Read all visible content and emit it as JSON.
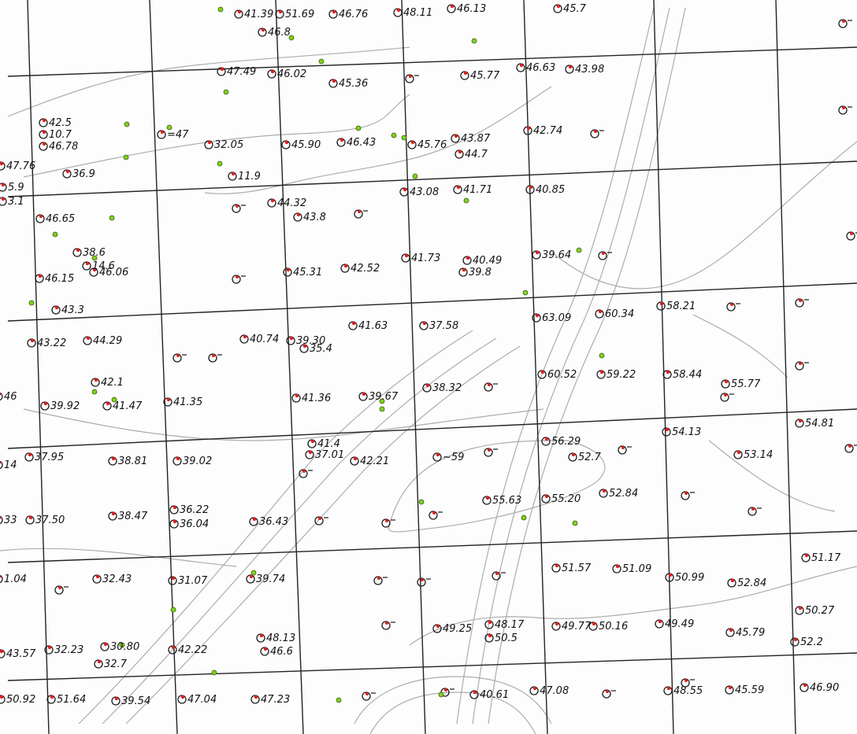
{
  "colors": {
    "ink": "#1a1a1a",
    "contour": "#8a8a8a",
    "red_dot": "#e0201c",
    "green_dot": "#7fd11e",
    "grid": "#222222"
  },
  "points": [
    {
      "label": "42.5"
    },
    {
      "label": "10.7"
    },
    {
      "label": "46.78"
    },
    {
      "label": "47.76"
    },
    {
      "label": "36.9"
    },
    {
      "label": "5.9"
    },
    {
      "label": "=47"
    },
    {
      "label": "47.49"
    },
    {
      "label": "46.02"
    },
    {
      "label": "45.36"
    },
    {
      "label": "45.77"
    },
    {
      "label": "46.63"
    },
    {
      "label": "43.98"
    },
    {
      "label": "32.05"
    },
    {
      "label": "45.90"
    },
    {
      "label": "46.43"
    },
    {
      "label": "45.76"
    },
    {
      "label": "43.87"
    },
    {
      "label": "44.7"
    },
    {
      "label": "42.74"
    },
    {
      "label": "46.65"
    },
    {
      "label": "38.6"
    },
    {
      "label": "14.6"
    },
    {
      "label": "46.15"
    },
    {
      "label": "46.06"
    },
    {
      "label": "44.32"
    },
    {
      "label": "43.8"
    },
    {
      "label": "43.08"
    },
    {
      "label": "41.71"
    },
    {
      "label": "40.85"
    },
    {
      "label": "45.31"
    },
    {
      "label": "42.52"
    },
    {
      "label": "41.73"
    },
    {
      "label": "40.49"
    },
    {
      "label": "39.64"
    },
    {
      "label": "39.8"
    },
    {
      "label": "43.3"
    },
    {
      "label": "43.22"
    },
    {
      "label": "44.29"
    },
    {
      "label": "40.74"
    },
    {
      "label": "39.30"
    },
    {
      "label": "35.4"
    },
    {
      "label": "41.63"
    },
    {
      "label": "37.58"
    },
    {
      "label": "63.09"
    },
    {
      "label": "60.34"
    },
    {
      "label": "58.21"
    },
    {
      "label": "42.1"
    },
    {
      "label": "39.92"
    },
    {
      "label": "41.47"
    },
    {
      "label": "41.35"
    },
    {
      "label": "41.36"
    },
    {
      "label": "39.67"
    },
    {
      "label": "38.32"
    },
    {
      "label": "60.52"
    },
    {
      "label": "59.22"
    },
    {
      "label": "58.44"
    },
    {
      "label": "55.77"
    },
    {
      "label": "37.95"
    },
    {
      "label": "38.81"
    },
    {
      "label": "39.02"
    },
    {
      "label": "41.4"
    },
    {
      "label": "37.01"
    },
    {
      "label": "42.21"
    },
    {
      "label": "~59"
    },
    {
      "label": "56.29"
    },
    {
      "label": "52.7"
    },
    {
      "label": "54.13"
    },
    {
      "label": "53.14"
    },
    {
      "label": "54.81"
    },
    {
      "label": "37.50"
    },
    {
      "label": "38.47"
    },
    {
      "label": "36.22"
    },
    {
      "label": "36.04"
    },
    {
      "label": "36.43"
    },
    {
      "label": "55.63"
    },
    {
      "label": "55.20"
    },
    {
      "label": "52.84"
    },
    {
      "label": "32.43"
    },
    {
      "label": "31.07"
    },
    {
      "label": "39.74"
    },
    {
      "label": "51.57"
    },
    {
      "label": "51.09"
    },
    {
      "label": "50.99"
    },
    {
      "label": "52.84"
    },
    {
      "label": "51.17"
    },
    {
      "label": "32.23"
    },
    {
      "label": "30.80"
    },
    {
      "label": "32.7"
    },
    {
      "label": "42.22"
    },
    {
      "label": "48.13"
    },
    {
      "label": "46.6"
    },
    {
      "label": "49.25"
    },
    {
      "label": "48.17"
    },
    {
      "label": "50.5"
    },
    {
      "label": "49.77"
    },
    {
      "label": "50.16"
    },
    {
      "label": "49.49"
    },
    {
      "label": "45.79"
    },
    {
      "label": "50.27"
    },
    {
      "label": "52.2"
    },
    {
      "label": "51.64"
    },
    {
      "label": "39.54"
    },
    {
      "label": "47.04"
    },
    {
      "label": "47.23"
    },
    {
      "label": "40.61"
    },
    {
      "label": "47.08"
    },
    {
      "label": "48.55"
    },
    {
      "label": "45.59"
    },
    {
      "label": "46.90"
    },
    {
      "label": "41.39"
    },
    {
      "label": "51.69"
    },
    {
      "label": "46.76"
    },
    {
      "label": "48.11"
    },
    {
      "label": "46.13"
    },
    {
      "label": "45.7"
    },
    {
      "label": "46.8"
    },
    {
      "label": "11.9"
    },
    {
      "label": "43.57"
    },
    {
      "label": "50.92"
    },
    {
      "label": "46"
    },
    {
      "label": "14"
    },
    {
      "label": "33"
    },
    {
      "label": "1.04"
    },
    {
      "label": "3.1"
    }
  ]
}
